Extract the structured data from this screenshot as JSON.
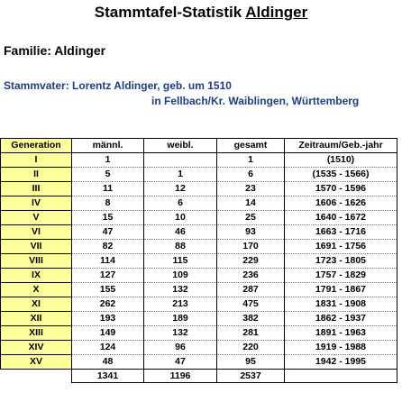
{
  "title_prefix": "Stammtafel-Statistik ",
  "title_name": "Aldinger",
  "familie": "Familie: Aldinger",
  "stammvater_line1": "Stammvater: Lorentz Aldinger, geb. um 1510",
  "stammvater_line2": "in Fellbach/Kr. Waiblingen, Württemberg",
  "table": {
    "headers": [
      "Generation",
      "männl.",
      "weibl.",
      "gesamt",
      "Zeitraum/Geb.-jahr"
    ],
    "rows": [
      [
        "I",
        "1",
        "",
        "1",
        "(1510)"
      ],
      [
        "II",
        "5",
        "1",
        "6",
        "(1535 - 1566)"
      ],
      [
        "III",
        "11",
        "12",
        "23",
        "1570 - 1596"
      ],
      [
        "IV",
        "8",
        "6",
        "14",
        "1606 - 1626"
      ],
      [
        "V",
        "15",
        "10",
        "25",
        "1640 - 1672"
      ],
      [
        "VI",
        "47",
        "46",
        "93",
        "1663 - 1716"
      ],
      [
        "VII",
        "82",
        "88",
        "170",
        "1691 - 1756"
      ],
      [
        "VIII",
        "114",
        "115",
        "229",
        "1723 - 1805"
      ],
      [
        "IX",
        "127",
        "109",
        "236",
        "1757 - 1829"
      ],
      [
        "X",
        "155",
        "132",
        "287",
        "1791 - 1867"
      ],
      [
        "XI",
        "262",
        "213",
        "475",
        "1831 - 1908"
      ],
      [
        "XII",
        "193",
        "189",
        "382",
        "1862 - 1937"
      ],
      [
        "XIII",
        "149",
        "132",
        "281",
        "1891 - 1963"
      ],
      [
        "XIV",
        "124",
        "96",
        "220",
        "1919 - 1988"
      ],
      [
        "XV",
        "48",
        "47",
        "95",
        "1942 - 1995"
      ]
    ],
    "totals": [
      "",
      "1341",
      "1196",
      "2537",
      ""
    ]
  },
  "colors": {
    "generation_column": "#ffff99",
    "stammvater_text": "#1f3d85"
  }
}
